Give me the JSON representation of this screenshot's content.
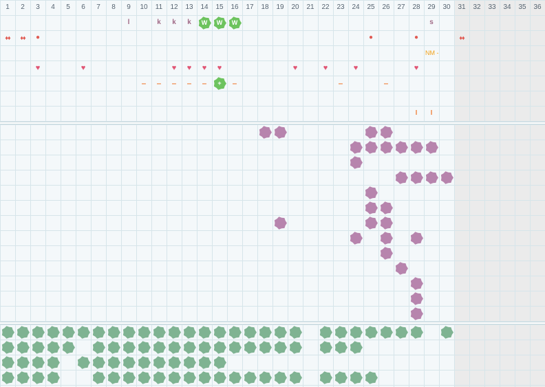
{
  "colors": {
    "background": "#f4f8fa",
    "weekend_shade": "#ebebeb",
    "grid_line": "#d6e5ea",
    "section_divider": "#c9d8de",
    "sticker_green": "#6dc35e",
    "purple_blob": "#b784ad",
    "green_blob": "#7fb392",
    "heart": "#e05574",
    "dot": "#e05a52",
    "dash": "#f08a4b",
    "note": "#f2a21a",
    "letter": "#a06a86"
  },
  "calendar": {
    "days": [
      "1",
      "2",
      "3",
      "4",
      "5",
      "6",
      "7",
      "8",
      "9",
      "10",
      "11",
      "12",
      "13",
      "14",
      "15",
      "16",
      "17",
      "18",
      "19",
      "20",
      "21",
      "22",
      "23",
      "24",
      "25",
      "26",
      "27",
      "28",
      "29",
      "30",
      "31",
      "32",
      "33",
      "34",
      "35",
      "36"
    ],
    "shaded_from_day": 31
  },
  "tracker": {
    "row1": [
      {
        "day": 9,
        "kind": "letter",
        "text": "l"
      },
      {
        "day": 11,
        "kind": "letter",
        "text": "k"
      },
      {
        "day": 12,
        "kind": "letter",
        "text": "k"
      },
      {
        "day": 13,
        "kind": "letter",
        "text": "k"
      },
      {
        "day": 14,
        "kind": "sticker",
        "text": "W"
      },
      {
        "day": 15,
        "kind": "sticker",
        "text": "W"
      },
      {
        "day": 16,
        "kind": "sticker",
        "text": "W"
      },
      {
        "day": 29,
        "kind": "letter",
        "text": "s"
      }
    ],
    "row2": [
      {
        "day": 1,
        "kind": "drops",
        "icon": "drops-icon",
        "text": "♦♦"
      },
      {
        "day": 2,
        "kind": "drops",
        "icon": "drops-icon",
        "text": "♦♦"
      },
      {
        "day": 3,
        "kind": "dot",
        "icon": "dot-icon",
        "text": "●"
      },
      {
        "day": 25,
        "kind": "dot",
        "icon": "dot-icon",
        "text": "●"
      },
      {
        "day": 28,
        "kind": "dot",
        "icon": "dot-icon",
        "text": "●"
      },
      {
        "day": 31,
        "kind": "drops",
        "icon": "drops-icon",
        "text": "♦♦"
      }
    ],
    "row3": [
      {
        "day": 29,
        "kind": "note",
        "text": "NM -"
      }
    ],
    "row4": [
      {
        "day": 3,
        "kind": "heart",
        "icon": "heart-icon",
        "text": "♥"
      },
      {
        "day": 6,
        "kind": "heart",
        "icon": "heart-icon",
        "text": "♥"
      },
      {
        "day": 12,
        "kind": "heart",
        "icon": "heart-icon",
        "text": "♥"
      },
      {
        "day": 13,
        "kind": "heart",
        "icon": "heart-icon",
        "text": "♥"
      },
      {
        "day": 14,
        "kind": "heart",
        "icon": "heart-icon",
        "text": "♥"
      },
      {
        "day": 15,
        "kind": "heart",
        "icon": "heart-icon",
        "text": "♥"
      },
      {
        "day": 20,
        "kind": "heart",
        "icon": "heart-icon",
        "text": "♥"
      },
      {
        "day": 22,
        "kind": "heart",
        "icon": "heart-icon",
        "text": "♥"
      },
      {
        "day": 24,
        "kind": "heart",
        "icon": "heart-icon",
        "text": "♥"
      },
      {
        "day": 28,
        "kind": "heart",
        "icon": "heart-icon",
        "text": "♥"
      }
    ],
    "row5": [
      {
        "day": 10,
        "kind": "dash",
        "text": "–"
      },
      {
        "day": 11,
        "kind": "dash",
        "text": "–"
      },
      {
        "day": 12,
        "kind": "dash",
        "text": "–"
      },
      {
        "day": 13,
        "kind": "dash",
        "text": "–"
      },
      {
        "day": 14,
        "kind": "dash",
        "text": "–"
      },
      {
        "day": 15,
        "kind": "sticker",
        "text": "+"
      },
      {
        "day": 16,
        "kind": "dash",
        "text": "–"
      },
      {
        "day": 23,
        "kind": "dash",
        "text": "–"
      },
      {
        "day": 26,
        "kind": "dash",
        "text": "–"
      }
    ],
    "row6": [],
    "row7": [
      {
        "day": 28,
        "kind": "tick",
        "text": "I"
      },
      {
        "day": 29,
        "kind": "tick",
        "text": "I"
      }
    ]
  },
  "purple_block": {
    "row_count": 13,
    "rows": [
      [
        18,
        19,
        25,
        26
      ],
      [
        24,
        25,
        26,
        27,
        28,
        29
      ],
      [
        24
      ],
      [
        27,
        28,
        29,
        30
      ],
      [
        25
      ],
      [
        25,
        26
      ],
      [
        19,
        25,
        26
      ],
      [
        24,
        26,
        28
      ],
      [
        26
      ],
      [
        27
      ],
      [
        28
      ],
      [
        28
      ],
      [
        28
      ]
    ]
  },
  "green_block": {
    "row_count": 4,
    "rows": [
      [
        1,
        2,
        3,
        4,
        5,
        6,
        7,
        8,
        9,
        10,
        11,
        12,
        13,
        14,
        15,
        16,
        17,
        18,
        19,
        20,
        22,
        23,
        24,
        25,
        26,
        27,
        28,
        30
      ],
      [
        1,
        2,
        3,
        4,
        5,
        7,
        8,
        9,
        10,
        11,
        12,
        13,
        14,
        15,
        16,
        17,
        18,
        19,
        20,
        22,
        23,
        24
      ],
      [
        1,
        2,
        3,
        4,
        6,
        7,
        8,
        9,
        10,
        11,
        12,
        13,
        14,
        15
      ],
      [
        1,
        2,
        3,
        4,
        7,
        8,
        9,
        10,
        11,
        12,
        13,
        14,
        15,
        16,
        17,
        18,
        19,
        20,
        22,
        23,
        24,
        25
      ]
    ]
  }
}
